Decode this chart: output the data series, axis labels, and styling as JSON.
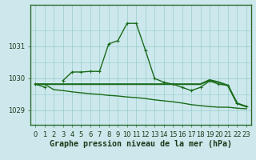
{
  "title": "Graphe pression niveau de la mer (hPa)",
  "x_labels": [
    "0",
    "1",
    "2",
    "3",
    "4",
    "5",
    "6",
    "7",
    "8",
    "9",
    "10",
    "11",
    "12",
    "13",
    "14",
    "15",
    "16",
    "17",
    "18",
    "19",
    "20",
    "21",
    "22",
    "23"
  ],
  "x_values": [
    0,
    1,
    2,
    3,
    4,
    5,
    6,
    7,
    8,
    9,
    10,
    11,
    12,
    13,
    14,
    15,
    16,
    17,
    18,
    19,
    20,
    21,
    22,
    23
  ],
  "line1": [
    1029.82,
    1029.73,
    null,
    1029.93,
    1030.2,
    1030.2,
    1030.22,
    1030.22,
    1031.08,
    1031.18,
    1031.72,
    1031.72,
    1030.88,
    1030.0,
    1029.88,
    1029.82,
    1029.72,
    1029.62,
    1029.72,
    1029.92,
    1029.82,
    1029.78,
    1029.22,
    1029.12
  ],
  "line2": [
    1029.82,
    1029.82,
    1029.82,
    1029.82,
    1029.82,
    1029.82,
    1029.82,
    1029.82,
    1029.82,
    1029.82,
    1029.82,
    1029.82,
    1029.82,
    1029.82,
    1029.82,
    1029.82,
    1029.82,
    1029.82,
    1029.82,
    1029.95,
    1029.88,
    1029.78,
    1029.22,
    1029.12
  ],
  "line3": [
    1029.82,
    1029.82,
    1029.65,
    1029.62,
    1029.58,
    1029.55,
    1029.52,
    1029.5,
    1029.47,
    1029.45,
    1029.42,
    1029.4,
    1029.37,
    1029.33,
    1029.3,
    1029.27,
    1029.23,
    1029.18,
    1029.15,
    1029.12,
    1029.1,
    1029.1,
    1029.07,
    1029.05
  ],
  "ylim": [
    1028.55,
    1032.3
  ],
  "yticks": [
    1029,
    1030,
    1031
  ],
  "bg_color": "#cce8ec",
  "grid_color_major": "#99cccc",
  "grid_color_minor": "#bbdddd",
  "line_color": "#1a6b1a",
  "frame_color": "#2d6a2d",
  "lw1": 1.0,
  "lw2": 1.5,
  "lw3": 1.0,
  "marker": "+",
  "marker_size": 3.5,
  "title_fontsize": 7.2,
  "tick_fontsize": 6.0
}
